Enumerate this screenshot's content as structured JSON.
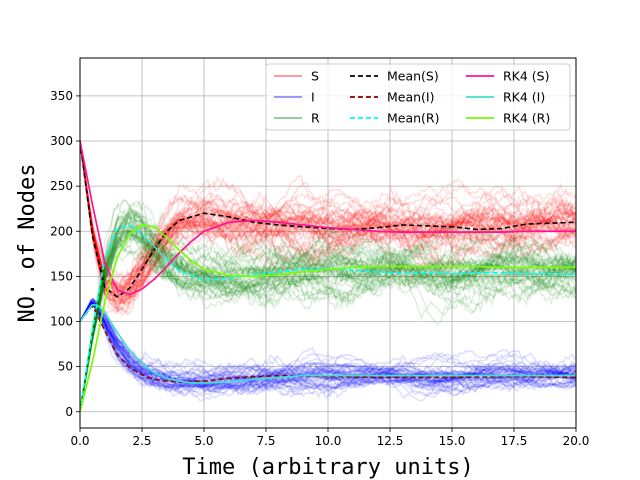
{
  "chart_data": {
    "type": "line",
    "title": "",
    "xlabel": "Time (arbitrary units)",
    "ylabel": "NO. of Nodes",
    "xlim": [
      0,
      20
    ],
    "ylim": [
      -18,
      392
    ],
    "x_ticks": [
      0,
      2.5,
      5,
      7.5,
      10,
      12.5,
      15,
      17.5,
      20
    ],
    "x_tick_labels": [
      "0.0",
      "2.5",
      "5.0",
      "7.5",
      "10.0",
      "12.5",
      "15.0",
      "17.5",
      "20.0"
    ],
    "y_ticks": [
      0,
      50,
      100,
      150,
      200,
      250,
      300,
      350
    ],
    "y_tick_labels": [
      "0",
      "50",
      "100",
      "150",
      "200",
      "250",
      "300",
      "350"
    ],
    "grid": true,
    "legend_placement": "top-right",
    "stochastic_runs_per_compartment": 50,
    "series": [
      {
        "name": "S",
        "kind": "stochastic-runs",
        "color": "#ff0000",
        "x": [
          0,
          0.5,
          1,
          1.5,
          2,
          2.5,
          3,
          3.5,
          4,
          5,
          6,
          7,
          8,
          10,
          12,
          15,
          17.5,
          20
        ],
        "values": [
          300,
          200,
          140,
          128,
          136,
          155,
          176,
          196,
          210,
          218,
          215,
          209,
          206,
          203,
          205,
          205,
          203,
          208
        ]
      },
      {
        "name": "I",
        "kind": "stochastic-runs",
        "color": "#0000ff",
        "x": [
          0,
          0.5,
          1,
          1.5,
          2,
          2.5,
          3,
          3.5,
          4,
          5,
          6,
          7,
          8,
          10,
          12,
          15,
          17.5,
          20
        ],
        "values": [
          100,
          123,
          100,
          72,
          55,
          45,
          39,
          35,
          33,
          32,
          35,
          37,
          39,
          40,
          39,
          39,
          40,
          39
        ]
      },
      {
        "name": "R",
        "kind": "stochastic-runs",
        "color": "#008000",
        "x": [
          0,
          0.5,
          1,
          1.5,
          2,
          2.5,
          3,
          3.5,
          4,
          5,
          6,
          7,
          8,
          10,
          12,
          15,
          17.5,
          20
        ],
        "values": [
          0,
          85,
          158,
          198,
          208,
          199,
          183,
          168,
          157,
          149,
          150,
          154,
          155,
          157,
          157,
          156,
          157,
          152
        ]
      },
      {
        "name": "Mean(S)",
        "kind": "mean",
        "color": "#000000",
        "x": [
          0,
          0.5,
          1,
          1.5,
          2,
          2.5,
          3,
          3.5,
          4,
          5,
          6,
          7,
          8,
          9,
          10,
          11,
          12,
          13,
          14,
          15,
          16,
          17,
          18,
          19,
          20
        ],
        "values": [
          300,
          195,
          138,
          127,
          137,
          158,
          180,
          200,
          212,
          220,
          216,
          210,
          207,
          205,
          203,
          202,
          204,
          207,
          206,
          205,
          202,
          203,
          208,
          209,
          210
        ]
      },
      {
        "name": "Mean(I)",
        "kind": "mean",
        "color": "#8b0000",
        "x": [
          0,
          0.5,
          1,
          1.5,
          2,
          2.5,
          3,
          3.5,
          4,
          5,
          6,
          7,
          8,
          10,
          12,
          15,
          17.5,
          20
        ],
        "values": [
          100,
          118,
          90,
          63,
          49,
          41,
          36,
          34,
          33,
          34,
          37,
          39,
          40,
          39,
          38,
          38,
          39,
          38
        ]
      },
      {
        "name": "Mean(R)",
        "kind": "mean",
        "color": "#00ffff",
        "x": [
          0,
          0.5,
          1,
          1.5,
          2,
          2.5,
          3,
          3.5,
          4,
          5,
          6,
          7,
          8,
          9,
          10,
          11,
          12,
          13,
          14,
          15,
          16,
          17,
          18,
          19,
          20
        ],
        "values": [
          0,
          90,
          170,
          203,
          207,
          197,
          183,
          168,
          156,
          146,
          148,
          152,
          155,
          158,
          159,
          157,
          155,
          153,
          154,
          153,
          154,
          154,
          153,
          153,
          152
        ]
      },
      {
        "name": "RK4 (S)",
        "kind": "rk4",
        "color": "#ff1493",
        "x": [
          0,
          0.5,
          1,
          1.5,
          2,
          2.5,
          3,
          3.5,
          4,
          4.5,
          5,
          6,
          7,
          8,
          9,
          10,
          11,
          12,
          13,
          14,
          15,
          16,
          17,
          18,
          19,
          20
        ],
        "values": [
          300,
          230,
          165,
          135,
          130,
          136,
          147,
          161,
          176,
          189,
          200,
          210,
          212,
          210,
          207,
          204,
          202,
          200,
          199,
          199,
          199,
          199,
          199,
          200,
          200,
          200
        ]
      },
      {
        "name": "RK4 (I)",
        "kind": "rk4",
        "color": "#40e0d0",
        "x": [
          0,
          0.5,
          0.75,
          1,
          1.5,
          2,
          2.5,
          3,
          3.5,
          4,
          4.5,
          5,
          6,
          7,
          8,
          9,
          10,
          11,
          12,
          14,
          16,
          18,
          20
        ],
        "values": [
          100,
          119,
          117,
          110,
          88,
          68,
          53,
          43,
          37,
          34,
          32,
          32,
          33,
          36,
          38,
          40,
          40,
          40,
          40,
          40,
          40,
          40,
          40
        ]
      },
      {
        "name": "RK4 (R)",
        "kind": "rk4",
        "color": "#7cfc00",
        "x": [
          0,
          0.5,
          1,
          1.5,
          2,
          2.5,
          3,
          3.5,
          4,
          4.5,
          5,
          6,
          7,
          8,
          9,
          10,
          11,
          12,
          13,
          14,
          15,
          16,
          17,
          18,
          19,
          20
        ],
        "values": [
          0,
          55,
          122,
          171,
          197,
          207,
          205,
          193,
          179,
          167,
          158,
          151,
          150,
          152,
          155,
          158,
          160,
          161,
          161,
          161,
          161,
          161,
          160,
          160,
          160,
          160
        ]
      }
    ]
  }
}
